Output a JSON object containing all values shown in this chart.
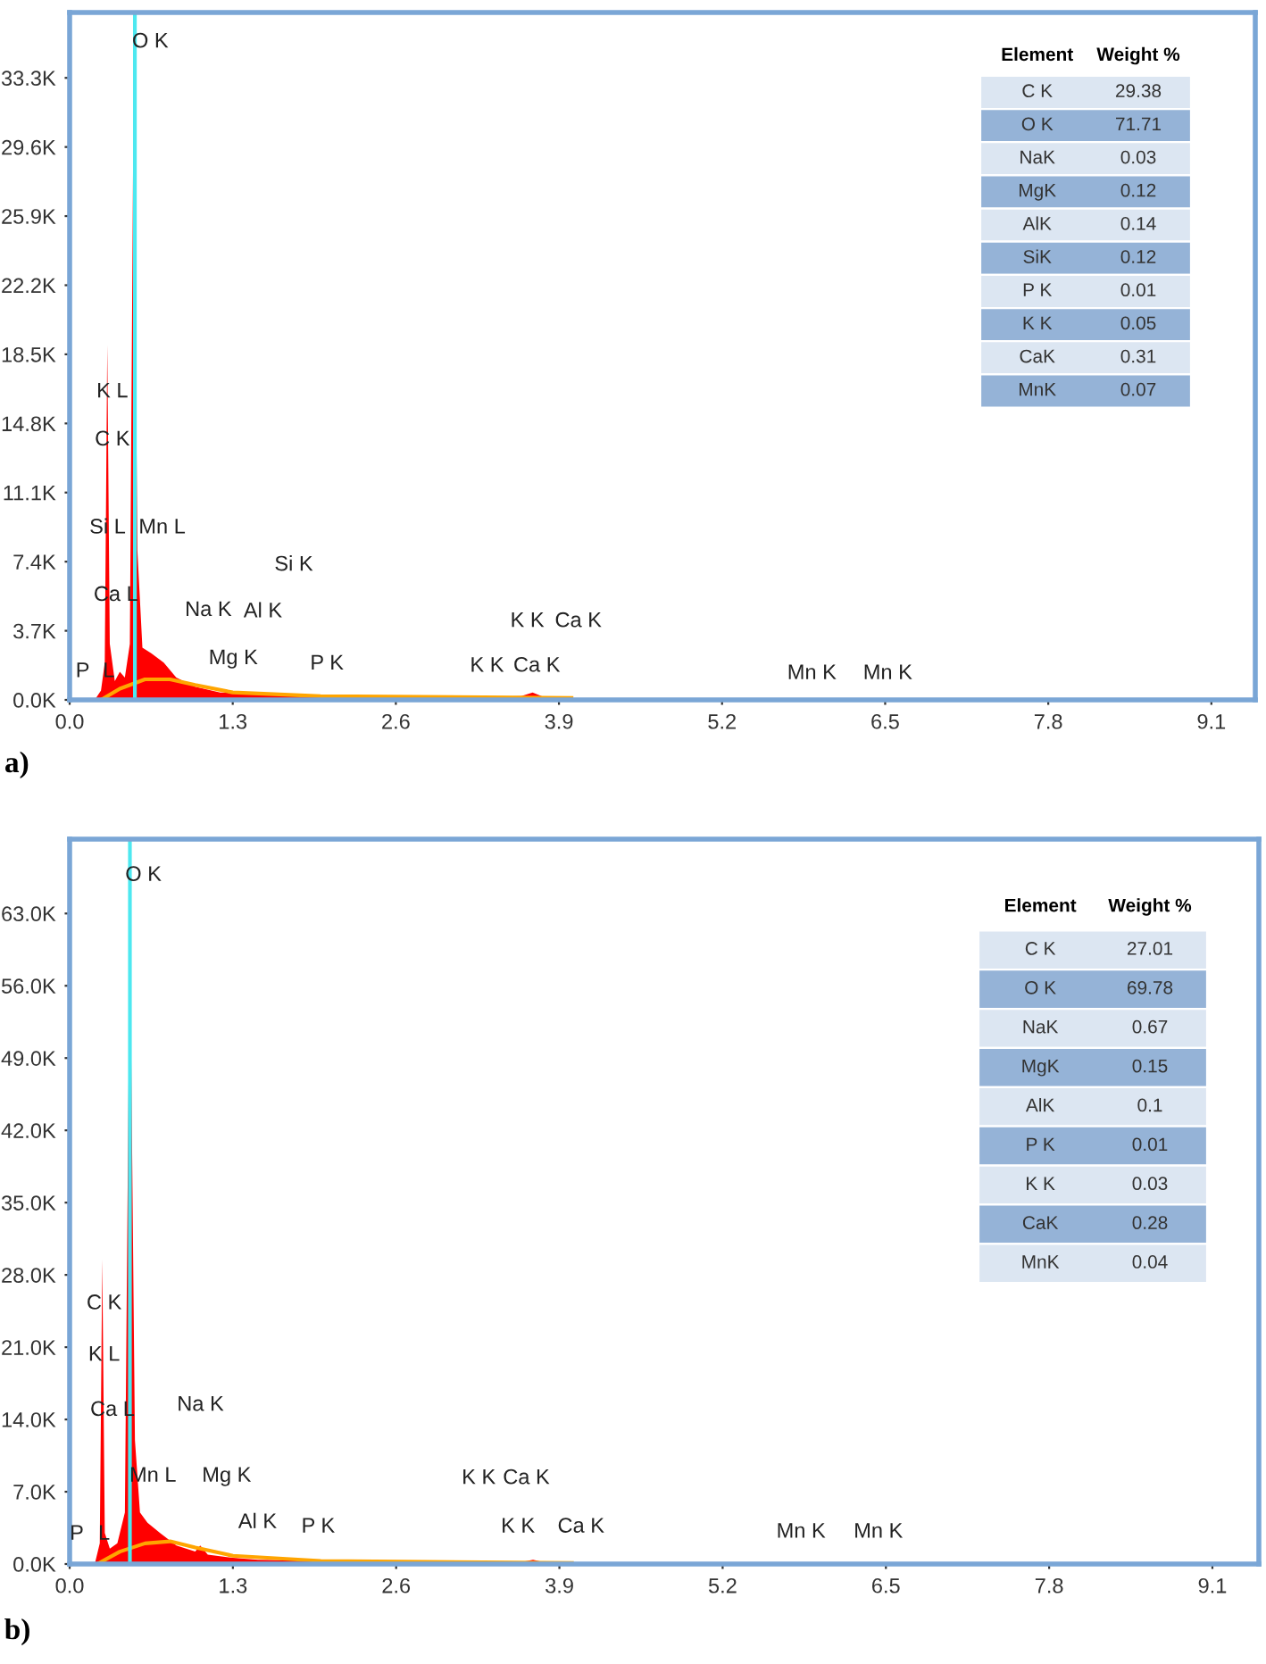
{
  "chart_data": [
    {
      "type": "area",
      "title": "a)",
      "xlim": [
        0,
        9.45
      ],
      "ylim": [
        0,
        36800
      ],
      "xticks": [
        {
          "value": 0,
          "label": "0.0"
        },
        1.3,
        2.6,
        3.9,
        5.2,
        6.5,
        7.8,
        9.1
      ],
      "yticks": [
        {
          "value": 0,
          "label": "0.0K"
        },
        {
          "value": 3700,
          "label": "3.7K"
        },
        {
          "value": 7400,
          "label": "7.4K"
        },
        {
          "value": 11100,
          "label": "11.1K"
        },
        {
          "value": 14800,
          "label": "14.8K"
        },
        {
          "value": 18500,
          "label": "18.5K"
        },
        {
          "value": 22200,
          "label": "22.2K"
        },
        {
          "value": 25900,
          "label": "25.9K"
        },
        {
          "value": 29600,
          "label": "29.6K"
        },
        {
          "value": 33300,
          "label": "33.3K"
        }
      ],
      "series": [
        {
          "type": "area",
          "color": "#ff0000",
          "x": [
            0.2,
            0.25,
            0.28,
            0.3,
            0.32,
            0.36,
            0.4,
            0.44,
            0.48,
            0.51,
            0.54,
            0.58,
            0.65,
            0.75,
            0.85,
            1.0,
            1.2,
            1.5,
            2.0,
            3.0,
            3.6,
            3.69,
            3.8,
            5.0,
            7.0,
            9.4
          ],
          "values": [
            0,
            500,
            2000,
            19000,
            3000,
            1000,
            1500,
            1200,
            3000,
            33000,
            8000,
            2800,
            2500,
            2000,
            1200,
            700,
            400,
            300,
            200,
            100,
            200,
            400,
            100,
            100,
            100,
            0
          ]
        },
        {
          "type": "line",
          "color": "#ffa500",
          "x": [
            0.25,
            0.4,
            0.6,
            0.8,
            1.0,
            1.3,
            2.0,
            4.0
          ],
          "values": [
            0,
            600,
            1100,
            1100,
            800,
            400,
            200,
            100
          ]
        }
      ],
      "ref_lines": [
        {
          "axis": "x",
          "value": 0.52,
          "color": "#4de8f0"
        }
      ],
      "annotations": [
        "O K",
        "K L",
        "C K",
        "Si L",
        "Mn L",
        "Si K",
        "Ca L",
        "Na K",
        "Al K",
        "K K",
        "Ca K",
        "Mg K",
        "P K",
        "K K",
        "Ca K",
        "P",
        "L",
        "Mn K",
        "Mn K"
      ]
    },
    {
      "type": "other",
      "annotations": [
        "Element",
        "Weight %"
      ],
      "categories": [
        "C K",
        "O K",
        "NaK",
        "MgK",
        "AlK",
        "SiK",
        "P K",
        "K K",
        "CaK",
        "MnK"
      ],
      "values": [
        29.38,
        71.71,
        0.03,
        0.12,
        0.14,
        0.12,
        0.01,
        0.05,
        0.31,
        0.07
      ],
      "colors": [
        "#dce6f2",
        "#95b3d7",
        "#dce6f2",
        "#95b3d7",
        "#dce6f2",
        "#95b3d7",
        "#dce6f2",
        "#95b3d7",
        "#dce6f2",
        "#95b3d7"
      ],
      "data_labels": true
    },
    {
      "type": "area",
      "title": "b)",
      "xlim": [
        0,
        9.47
      ],
      "ylim": [
        0,
        70200
      ],
      "xticks": [
        {
          "value": 0,
          "label": "0.0"
        },
        1.3,
        2.6,
        3.9,
        5.2,
        6.5,
        7.8,
        9.1
      ],
      "yticks": [
        {
          "value": 0,
          "label": "0.0K"
        },
        {
          "value": 7000,
          "label": "7.0K"
        },
        {
          "value": 14000,
          "label": "14.0K"
        },
        {
          "value": 21000,
          "label": "21.0K"
        },
        {
          "value": 28000,
          "label": "28.0K"
        },
        {
          "value": 35000,
          "label": "35.0K"
        },
        {
          "value": 42000,
          "label": "42.0K"
        },
        {
          "value": 49000,
          "label": "49.0K"
        },
        {
          "value": 56000,
          "label": "56.0K"
        },
        {
          "value": 63000,
          "label": "63.0K"
        }
      ],
      "series": [
        {
          "type": "area",
          "color": "#ff0000",
          "x": [
            0.2,
            0.24,
            0.26,
            0.28,
            0.32,
            0.38,
            0.44,
            0.48,
            0.52,
            0.56,
            0.62,
            0.72,
            0.85,
            1.0,
            1.04,
            1.1,
            1.3,
            1.5,
            2.0,
            3.0,
            3.6,
            3.69,
            3.8,
            5.0,
            7.0,
            9.4
          ],
          "values": [
            0,
            2000,
            29500,
            3000,
            1500,
            2000,
            5000,
            62000,
            12000,
            5000,
            4000,
            3000,
            1800,
            1200,
            1800,
            900,
            600,
            400,
            300,
            200,
            200,
            400,
            100,
            100,
            100,
            0
          ]
        },
        {
          "type": "line",
          "color": "#ffa500",
          "x": [
            0.22,
            0.4,
            0.6,
            0.8,
            1.0,
            1.3,
            2.0,
            4.0
          ],
          "values": [
            0,
            1200,
            2000,
            2200,
            1600,
            800,
            300,
            100
          ]
        }
      ],
      "ref_lines": [
        {
          "axis": "x",
          "value": 0.48,
          "color": "#4de8f0"
        }
      ],
      "annotations": [
        "O K",
        "C K",
        "K L",
        "Ca L",
        "Na K",
        "Mn L",
        "Mg K",
        "K K",
        "Ca K",
        "Al K",
        "P K",
        "K K",
        "Ca K",
        "P",
        "L",
        "Mn K",
        "Mn K"
      ]
    },
    {
      "type": "other",
      "annotations": [
        "Element",
        "Weight %"
      ],
      "categories": [
        "C K",
        "O K",
        "NaK",
        "MgK",
        "AlK",
        "P K",
        "K K",
        "CaK",
        "MnK"
      ],
      "values": [
        27.01,
        69.78,
        0.67,
        0.15,
        0.1,
        0.01,
        0.03,
        0.28,
        0.04
      ],
      "colors": [
        "#dce6f2",
        "#95b3d7",
        "#dce6f2",
        "#95b3d7",
        "#dce6f2",
        "#95b3d7",
        "#dce6f2",
        "#95b3d7",
        "#dce6f2"
      ],
      "data_labels": true
    }
  ]
}
